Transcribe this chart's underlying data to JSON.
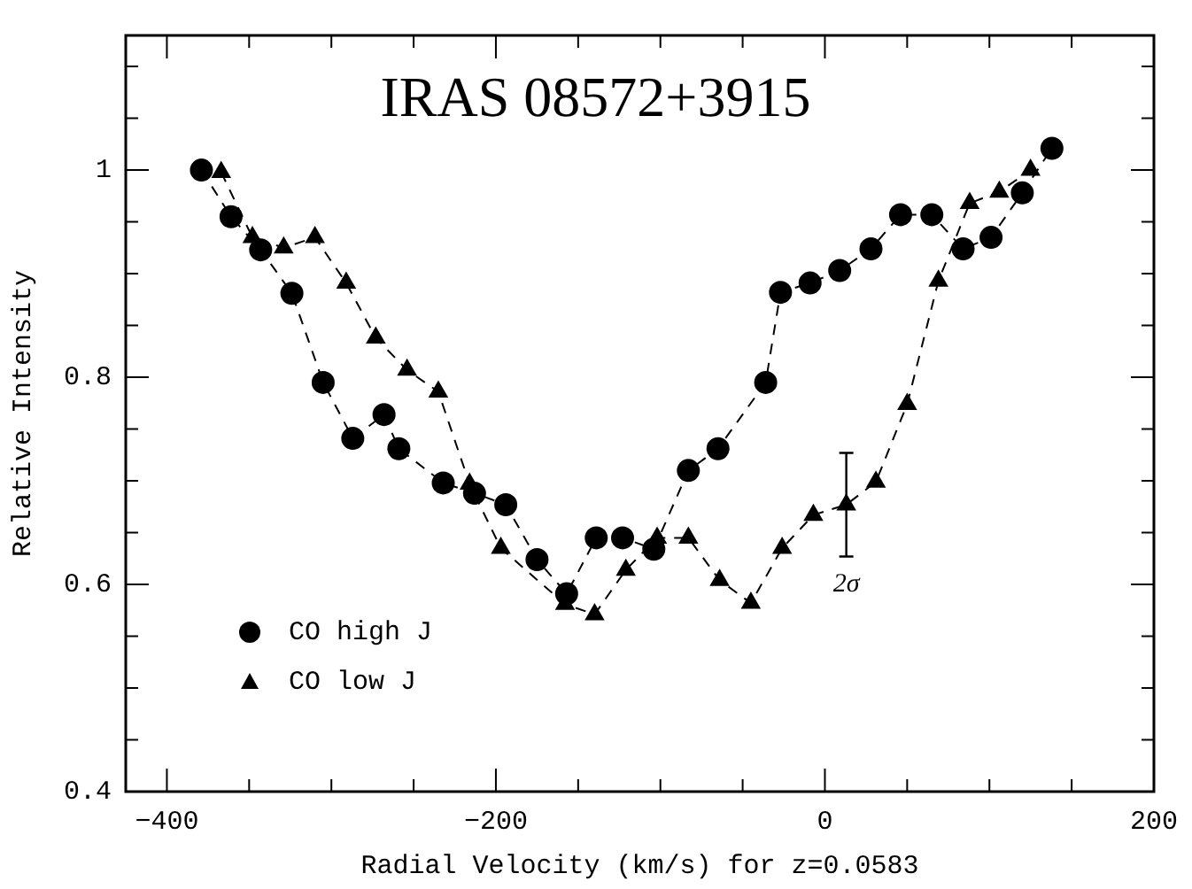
{
  "chart_data": {
    "type": "line",
    "title": "IRAS 08572+3915",
    "xlabel": "Radial Velocity (km/s) for z=0.0583",
    "ylabel": "Relative Intensity",
    "xlim": [
      -425,
      200
    ],
    "ylim": [
      0.4,
      1.13
    ],
    "xticks": [
      -400,
      {
        "value": -350,
        "label": null
      },
      {
        "value": -300,
        "label": null
      },
      {
        "value": -250,
        "label": null
      },
      -200,
      {
        "value": -150,
        "label": null
      },
      {
        "value": -100,
        "label": null
      },
      {
        "value": -50,
        "label": null
      },
      0,
      {
        "value": 50,
        "label": null
      },
      {
        "value": 100,
        "label": null
      },
      {
        "value": 150,
        "label": null
      },
      200
    ],
    "yticks": [
      0.4,
      {
        "value": 0.45,
        "label": null
      },
      {
        "value": 0.5,
        "label": null
      },
      {
        "value": 0.55,
        "label": null
      },
      0.6,
      {
        "value": 0.65,
        "label": null
      },
      {
        "value": 0.7,
        "label": null
      },
      {
        "value": 0.75,
        "label": null
      },
      0.8,
      {
        "value": 0.85,
        "label": null
      },
      {
        "value": 0.9,
        "label": null
      },
      {
        "value": 0.95,
        "label": null
      },
      1,
      {
        "value": 1.05,
        "label": null
      },
      {
        "value": 1.1,
        "label": null
      }
    ],
    "legend": "bottom left",
    "grid": false,
    "series": [
      {
        "name": "CO high J",
        "color": "#000000",
        "marker": "circle",
        "line_style": "dashed",
        "x": [
          -379,
          -361,
          -343,
          -324,
          -305,
          -287,
          -268,
          -259,
          -232,
          -213,
          -194,
          -175,
          -157,
          -139,
          -123,
          -104,
          -83,
          -65,
          -36,
          -27,
          -9,
          9,
          28,
          46,
          65,
          84,
          101,
          120,
          138
        ],
        "values": [
          1.0,
          0.955,
          0.923,
          0.881,
          0.795,
          0.741,
          0.764,
          0.731,
          0.698,
          0.688,
          0.677,
          0.624,
          0.591,
          0.645,
          0.645,
          0.634,
          0.71,
          0.731,
          0.795,
          0.882,
          0.891,
          0.903,
          0.924,
          0.957,
          0.957,
          0.924,
          0.935,
          0.978,
          1.021
        ]
      },
      {
        "name": "CO low J",
        "color": "#000000",
        "marker": "triangle",
        "line_style": "dashed",
        "x": [
          -367,
          -348,
          -329,
          -310,
          -291,
          -273,
          -254,
          -235,
          -216,
          -197,
          -158,
          -140,
          -121,
          -102,
          -83,
          -64,
          -45,
          -26,
          -7,
          13,
          31,
          50,
          69,
          88,
          106,
          125
        ],
        "values": [
          0.998,
          0.935,
          0.925,
          0.935,
          0.891,
          0.838,
          0.807,
          0.786,
          0.697,
          0.635,
          0.581,
          0.571,
          0.614,
          0.645,
          0.645,
          0.604,
          0.582,
          0.635,
          0.667,
          0.677,
          0.699,
          0.774,
          0.893,
          0.968,
          0.979,
          1.0
        ],
        "errors": [
          null,
          null,
          null,
          null,
          null,
          null,
          null,
          null,
          null,
          null,
          null,
          null,
          null,
          null,
          null,
          null,
          null,
          null,
          null,
          0.05,
          null,
          null,
          null,
          null,
          null,
          null
        ]
      }
    ],
    "annotations": [
      "2σ"
    ]
  }
}
